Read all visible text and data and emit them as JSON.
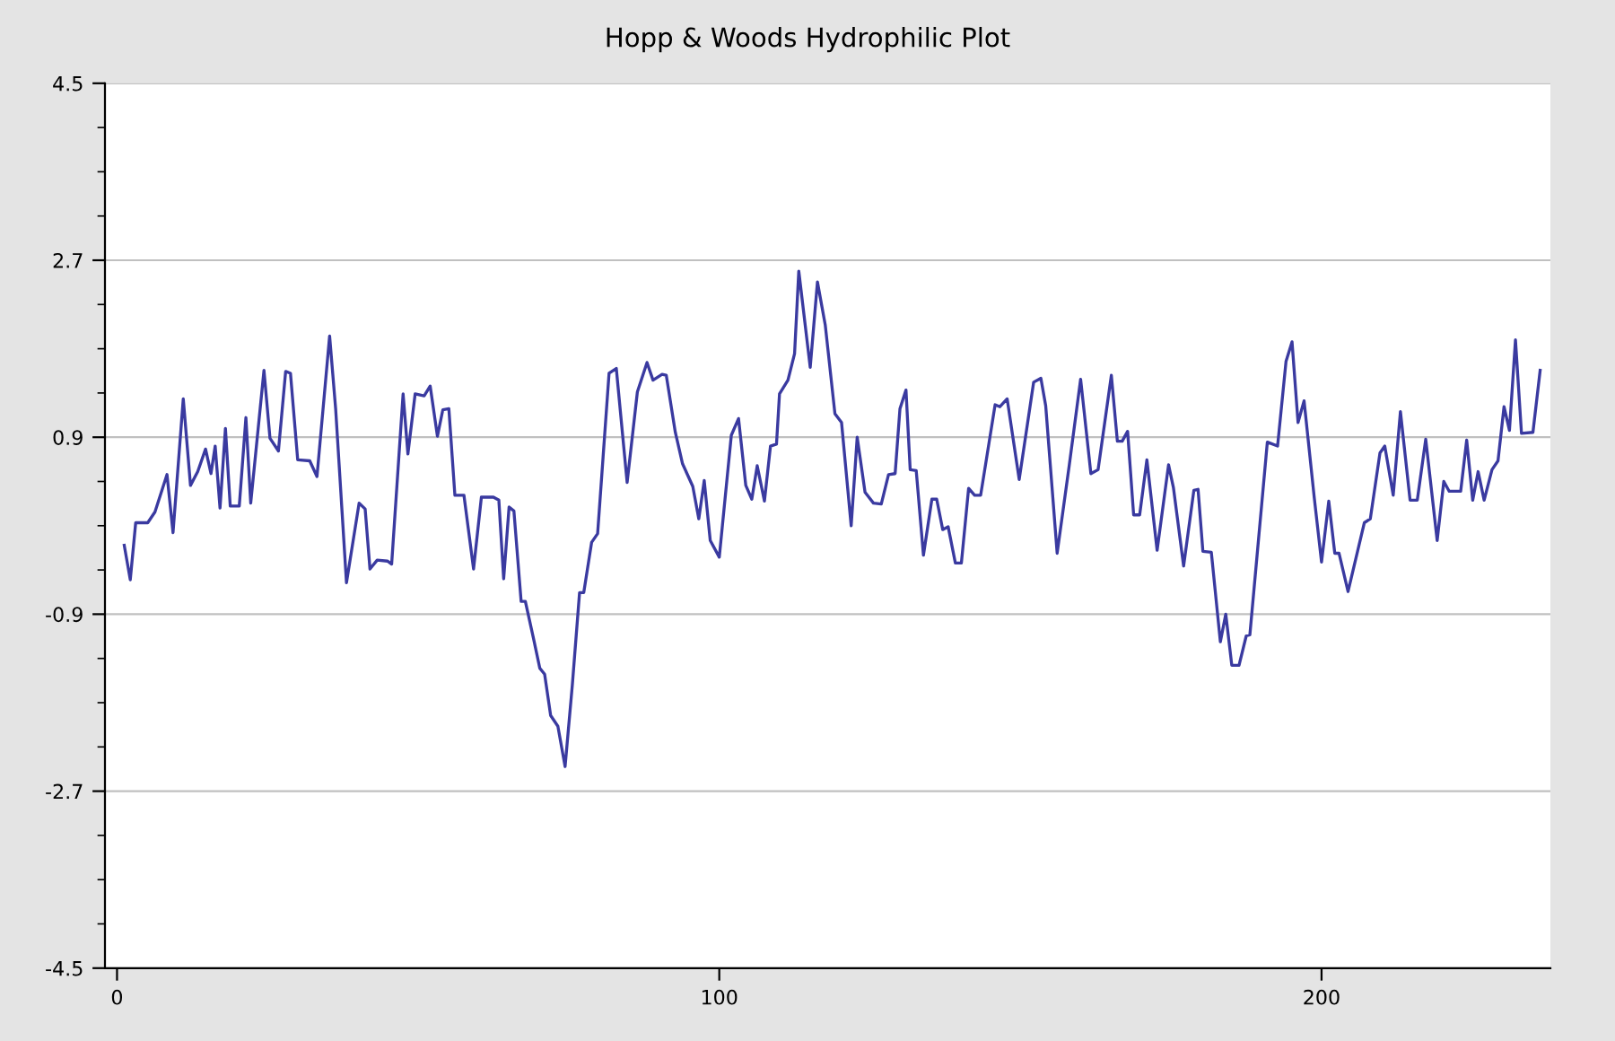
{
  "chart_data": {
    "type": "line",
    "title": "Hopp & Woods Hydrophilic Plot",
    "xlim": [
      -2,
      238
    ],
    "xticks": [
      0,
      100,
      200
    ],
    "ylim": [
      -4.5,
      4.5
    ],
    "yticks": [
      4.5,
      {
        "value": 4.05,
        "label": null
      },
      {
        "value": 3.6,
        "label": null
      },
      {
        "value": 3.15,
        "label": null
      },
      2.7,
      {
        "value": 2.25,
        "label": null
      },
      {
        "value": 1.8,
        "label": null
      },
      {
        "value": 1.35,
        "label": null
      },
      0.9,
      {
        "value": 0.45,
        "label": null
      },
      {
        "value": 0,
        "label": null
      },
      {
        "value": -0.45,
        "label": null
      },
      -0.9,
      {
        "value": -1.35,
        "label": null
      },
      {
        "value": -1.8,
        "label": null
      },
      {
        "value": -2.25,
        "label": null
      },
      -2.7,
      {
        "value": -3.15,
        "label": null
      },
      {
        "value": -3.6,
        "label": null
      },
      {
        "value": -4.05,
        "label": null
      },
      -4.5
    ],
    "grid": "y",
    "marker": "none",
    "line_style": "solid",
    "series": [
      {
        "color": "#3a3aa0",
        "x": [
          1.2,
          2.2,
          3.1,
          5.1,
          6.3,
          8.3,
          9.3,
          11.0,
          12.2,
          13.4,
          14.7,
          15.6,
          16.3,
          17.1,
          18.0,
          18.8,
          20.3,
          21.4,
          22.2,
          24.4,
          25.4,
          26.8,
          28.0,
          28.8,
          30.0,
          32.0,
          33.2,
          35.3,
          36.3,
          38.1,
          40.2,
          41.2,
          42.0,
          43.2,
          44.9,
          45.6,
          47.5,
          48.3,
          49.5,
          51.0,
          52.0,
          53.2,
          54.1,
          55.1,
          56.1,
          57.6,
          59.2,
          60.5,
          62.5,
          63.4,
          64.2,
          65.1,
          65.9,
          67.1,
          67.8,
          69.2,
          70.2,
          71.0,
          72.0,
          73.2,
          74.4,
          75.6,
          76.8,
          77.5,
          78.8,
          79.8,
          81.7,
          82.9,
          84.7,
          86.4,
          88.0,
          89.0,
          90.5,
          91.2,
          92.7,
          93.9,
          95.6,
          96.6,
          97.5,
          98.5,
          100.0,
          102.0,
          103.2,
          104.4,
          105.4,
          106.3,
          107.5,
          108.5,
          109.5,
          110.0,
          111.4,
          112.5,
          113.2,
          115.1,
          116.3,
          117.6,
          119.2,
          120.3,
          121.9,
          122.9,
          124.2,
          125.6,
          126.9,
          128.1,
          129.2,
          130.0,
          131.0,
          131.7,
          132.7,
          133.9,
          135.3,
          136.1,
          137.1,
          138.0,
          139.2,
          140.2,
          141.4,
          142.4,
          143.4,
          145.8,
          146.6,
          147.8,
          149.8,
          152.2,
          153.4,
          154.2,
          156.1,
          158.1,
          160.0,
          161.7,
          162.9,
          165.1,
          166.1,
          166.9,
          167.8,
          168.8,
          169.8,
          171.0,
          172.7,
          174.6,
          175.4,
          177.1,
          178.8,
          179.5,
          180.3,
          181.7,
          183.2,
          184.1,
          185.1,
          186.3,
          187.5,
          188.1,
          191.0,
          192.7,
          194.1,
          195.1,
          196.1,
          197.1,
          198.8,
          200.0,
          201.2,
          202.2,
          202.9,
          204.4,
          207.1,
          208.1,
          209.7,
          210.5,
          211.9,
          213.1,
          214.7,
          215.9,
          217.3,
          219.2,
          220.3,
          221.2,
          223.1,
          224.1,
          225.1,
          226.0,
          227.0,
          228.3,
          229.3,
          230.3,
          231.2,
          232.2,
          233.2,
          235.1,
          236.3
        ],
        "values": [
          -0.2,
          -0.55,
          0.03,
          0.03,
          0.14,
          0.52,
          -0.07,
          1.29,
          0.41,
          0.55,
          0.78,
          0.53,
          0.81,
          0.18,
          0.99,
          0.2,
          0.2,
          1.1,
          0.23,
          1.58,
          0.89,
          0.76,
          1.57,
          1.55,
          0.67,
          0.66,
          0.5,
          1.93,
          1.19,
          -0.58,
          0.23,
          0.17,
          -0.44,
          -0.35,
          -0.36,
          -0.39,
          1.34,
          0.73,
          1.34,
          1.32,
          1.42,
          0.91,
          1.18,
          1.19,
          0.31,
          0.31,
          -0.44,
          0.29,
          0.29,
          0.26,
          -0.54,
          0.19,
          0.15,
          -0.77,
          -0.77,
          -1.16,
          -1.45,
          -1.51,
          -1.93,
          -2.04,
          -2.45,
          -1.62,
          -0.68,
          -0.68,
          -0.17,
          -0.08,
          1.55,
          1.6,
          0.44,
          1.36,
          1.66,
          1.48,
          1.54,
          1.53,
          0.95,
          0.63,
          0.4,
          0.07,
          0.46,
          -0.15,
          -0.32,
          0.92,
          1.09,
          0.41,
          0.27,
          0.61,
          0.25,
          0.81,
          0.83,
          1.34,
          1.48,
          1.75,
          2.59,
          1.61,
          2.48,
          2.04,
          1.14,
          1.05,
          0.0,
          0.9,
          0.34,
          0.23,
          0.22,
          0.52,
          0.53,
          1.19,
          1.38,
          0.57,
          0.56,
          -0.3,
          0.27,
          0.27,
          -0.04,
          -0.01,
          -0.38,
          -0.38,
          0.38,
          0.31,
          0.31,
          1.23,
          1.21,
          1.29,
          0.47,
          1.46,
          1.5,
          1.22,
          -0.28,
          0.61,
          1.49,
          0.53,
          0.57,
          1.53,
          0.86,
          0.86,
          0.96,
          0.11,
          0.11,
          0.67,
          -0.25,
          0.62,
          0.39,
          -0.41,
          0.36,
          0.37,
          -0.26,
          -0.27,
          -1.18,
          -0.9,
          -1.42,
          -1.42,
          -1.12,
          -1.11,
          0.85,
          0.81,
          1.67,
          1.87,
          1.05,
          1.27,
          0.28,
          -0.37,
          0.25,
          -0.28,
          -0.28,
          -0.67,
          0.03,
          0.07,
          0.74,
          0.81,
          0.31,
          1.16,
          0.26,
          0.26,
          0.88,
          -0.15,
          0.45,
          0.35,
          0.35,
          0.87,
          0.26,
          0.55,
          0.26,
          0.57,
          0.66,
          1.21,
          0.97,
          1.89,
          0.94,
          0.95,
          1.58
        ]
      }
    ]
  }
}
